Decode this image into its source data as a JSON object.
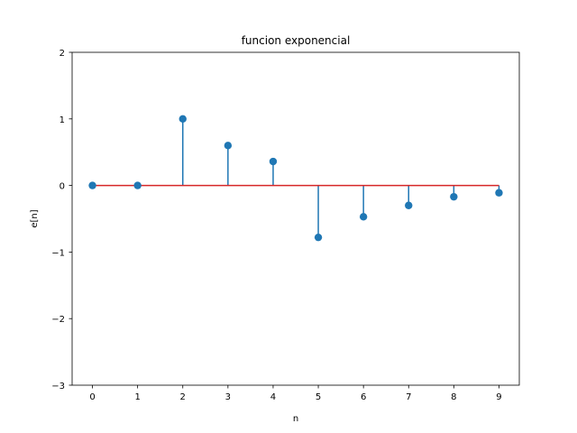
{
  "chart_data": {
    "type": "stem",
    "title": "funcion exponencial",
    "xlabel": "n",
    "ylabel": "e[n]",
    "x": [
      0,
      1,
      2,
      3,
      4,
      5,
      6,
      7,
      8,
      9
    ],
    "values": [
      0,
      0,
      1.0,
      0.6,
      0.36,
      -0.78,
      -0.47,
      -0.3,
      -0.17,
      -0.11
    ],
    "xlim": [
      -0.45,
      9.45
    ],
    "ylim": [
      -3,
      2
    ],
    "xticks": [
      "0",
      "1",
      "2",
      "3",
      "4",
      "5",
      "6",
      "7",
      "8",
      "9"
    ],
    "yticks": [
      {
        "value": -3,
        "label": "−3"
      },
      {
        "value": -2,
        "label": "−2"
      },
      {
        "value": -1,
        "label": "−1"
      },
      {
        "value": 0,
        "label": "0"
      },
      {
        "value": 1,
        "label": "1"
      },
      {
        "value": 2,
        "label": "2"
      }
    ],
    "grid": false,
    "colors": {
      "stem": "#1f77b4",
      "marker": "#1f77b4",
      "baseline": "#d62728"
    }
  }
}
